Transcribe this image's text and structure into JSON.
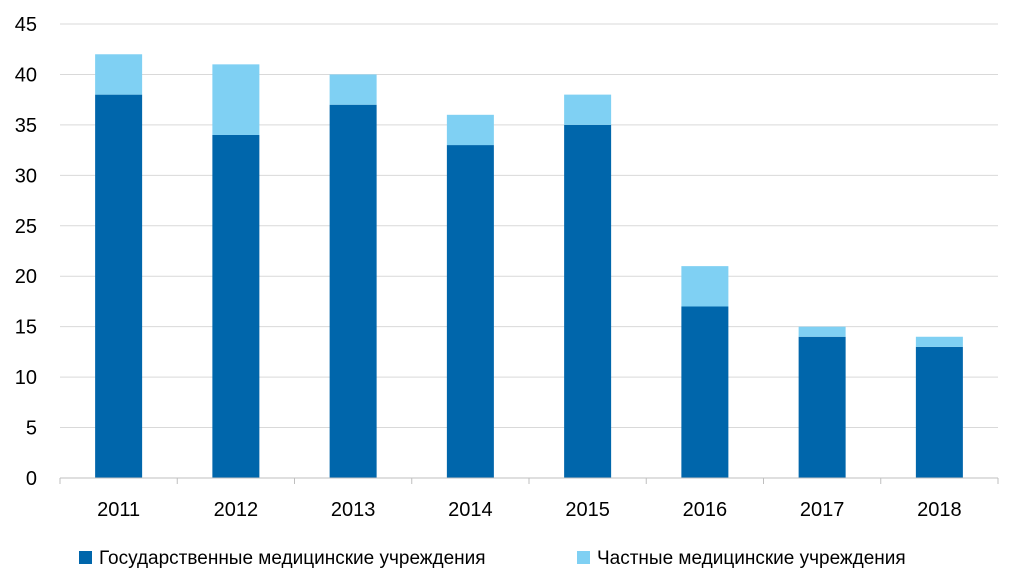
{
  "chart_data": {
    "type": "bar",
    "stacked": true,
    "categories": [
      "2011",
      "2012",
      "2013",
      "2014",
      "2015",
      "2016",
      "2017",
      "2018"
    ],
    "series": [
      {
        "name": "Государственные медицинские учреждения",
        "color": "#0066ab",
        "values": [
          38,
          34,
          37,
          33,
          35,
          17,
          14,
          13
        ]
      },
      {
        "name": "Частные медицинские учреждения",
        "color": "#7fd0f3",
        "values": [
          4,
          7,
          3,
          3,
          3,
          4,
          1,
          1
        ]
      }
    ],
    "ylim": [
      0,
      45
    ],
    "yticks": [
      0,
      5,
      10,
      15,
      20,
      25,
      30,
      35,
      40,
      45
    ],
    "grid": true,
    "legend_position": "bottom"
  }
}
